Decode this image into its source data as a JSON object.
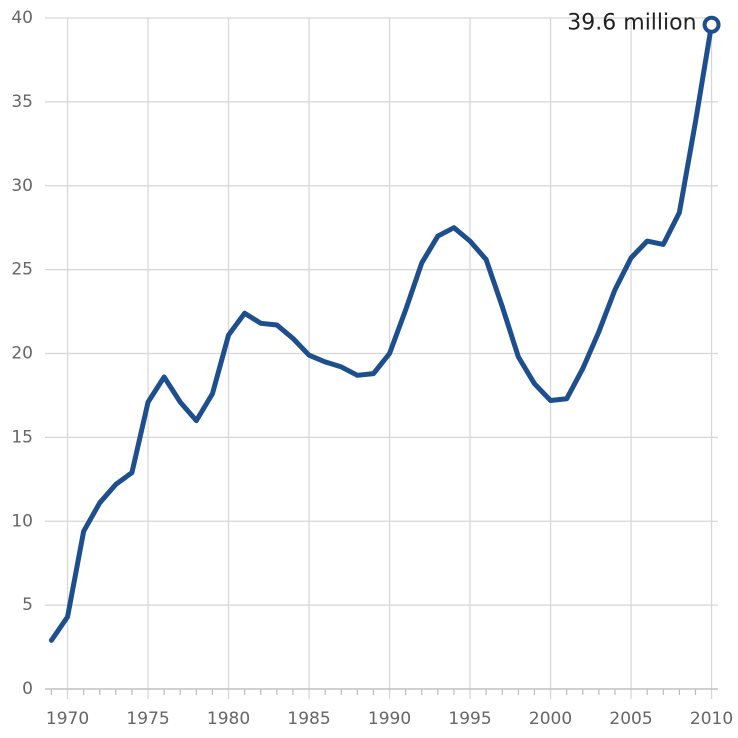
{
  "chart_data": {
    "type": "line",
    "x": [
      1969,
      1970,
      1971,
      1972,
      1973,
      1974,
      1975,
      1976,
      1977,
      1978,
      1979,
      1980,
      1981,
      1982,
      1983,
      1984,
      1985,
      1986,
      1987,
      1988,
      1989,
      1990,
      1991,
      1992,
      1993,
      1994,
      1995,
      1996,
      1997,
      1998,
      1999,
      2000,
      2001,
      2002,
      2003,
      2004,
      2005,
      2006,
      2007,
      2008,
      2009,
      2010
    ],
    "values": [
      2.9,
      4.3,
      9.4,
      11.1,
      12.2,
      12.9,
      17.1,
      18.6,
      17.1,
      16.0,
      17.6,
      21.1,
      22.4,
      21.8,
      21.7,
      20.9,
      19.9,
      19.5,
      19.2,
      18.7,
      18.8,
      20.0,
      22.6,
      25.4,
      27.0,
      27.5,
      26.7,
      25.6,
      22.8,
      19.8,
      18.2,
      17.2,
      17.3,
      19.1,
      21.3,
      23.8,
      25.7,
      26.7,
      26.5,
      28.4,
      33.8,
      39.6
    ],
    "color": "#1d4f8f",
    "annotation": "39.6 million",
    "xlim": [
      1968.6,
      2010.4
    ],
    "ylim": [
      0,
      40
    ],
    "xticks": [
      1970,
      1975,
      1980,
      1985,
      1990,
      1995,
      2000,
      2005,
      2010
    ],
    "xminorticks": [
      1969,
      1971,
      1972,
      1973,
      1974,
      1976,
      1977,
      1978,
      1979,
      1981,
      1982,
      1983,
      1984,
      1986,
      1987,
      1988,
      1989,
      1991,
      1992,
      1993,
      1994,
      1996,
      1997,
      1998,
      1999,
      2001,
      2002,
      2003,
      2004,
      2006,
      2007,
      2008,
      2009
    ],
    "yticks": [
      0,
      5,
      10,
      15,
      20,
      25,
      30,
      35,
      40
    ],
    "grid": true
  }
}
